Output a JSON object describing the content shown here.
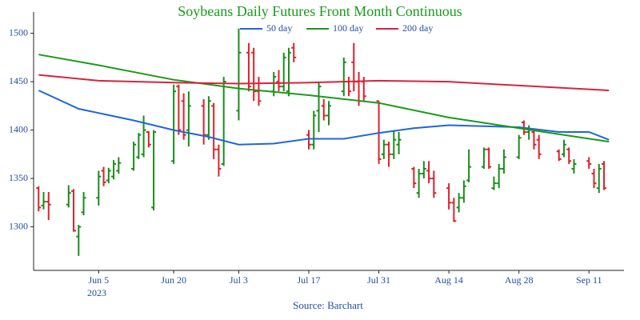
{
  "chart_data": {
    "type": "ohlc",
    "title": "Soybeans Daily Futures Front Month Continuous",
    "source": "Source: Barchart",
    "x_year_label": "2023",
    "up_color": "#1a8c1a",
    "down_color": "#e0202a",
    "xlim": [
      "2023-05-23",
      "2023-09-18"
    ],
    "xticks": [
      {
        "value": "2023-06-05",
        "label": "Jun 5"
      },
      {
        "value": "2023-06-20",
        "label": "Jun 20"
      },
      {
        "value": "2023-07-03",
        "label": "Jul 3"
      },
      {
        "value": "2023-07-17",
        "label": "Jul 17"
      },
      {
        "value": "2023-07-31",
        "label": "Jul 31"
      },
      {
        "value": "2023-08-14",
        "label": "Aug 14"
      },
      {
        "value": "2023-08-28",
        "label": "Aug 28"
      },
      {
        "value": "2023-09-11",
        "label": "Sep 11"
      }
    ],
    "ylim": [
      1255,
      1522
    ],
    "yticks": [
      1300,
      1350,
      1400,
      1450,
      1500
    ],
    "grid": false,
    "ohlc": {
      "x": [
        "2023-05-24",
        "2023-05-25",
        "2023-05-26",
        "2023-05-30",
        "2023-05-31",
        "2023-06-01",
        "2023-06-02",
        "2023-06-05",
        "2023-06-06",
        "2023-06-07",
        "2023-06-08",
        "2023-06-09",
        "2023-06-12",
        "2023-06-13",
        "2023-06-14",
        "2023-06-15",
        "2023-06-16",
        "2023-06-20",
        "2023-06-21",
        "2023-06-22",
        "2023-06-23",
        "2023-06-26",
        "2023-06-27",
        "2023-06-28",
        "2023-06-29",
        "2023-06-30",
        "2023-07-03",
        "2023-07-05",
        "2023-07-06",
        "2023-07-07",
        "2023-07-10",
        "2023-07-11",
        "2023-07-12",
        "2023-07-13",
        "2023-07-14",
        "2023-07-17",
        "2023-07-18",
        "2023-07-19",
        "2023-07-20",
        "2023-07-21",
        "2023-07-24",
        "2023-07-25",
        "2023-07-26",
        "2023-07-27",
        "2023-07-28",
        "2023-07-31",
        "2023-08-01",
        "2023-08-02",
        "2023-08-03",
        "2023-08-04",
        "2023-08-07",
        "2023-08-08",
        "2023-08-09",
        "2023-08-10",
        "2023-08-11",
        "2023-08-14",
        "2023-08-15",
        "2023-08-16",
        "2023-08-17",
        "2023-08-18",
        "2023-08-21",
        "2023-08-22",
        "2023-08-23",
        "2023-08-24",
        "2023-08-25",
        "2023-08-28",
        "2023-08-29",
        "2023-08-30",
        "2023-08-31",
        "2023-09-01",
        "2023-09-05",
        "2023-09-06",
        "2023-09-07",
        "2023-09-08",
        "2023-09-11",
        "2023-09-12",
        "2023-09-13",
        "2023-09-14"
      ],
      "open": [
        1340,
        1322,
        1326,
        1323,
        1337,
        1290,
        1315,
        1330,
        1358,
        1348,
        1352,
        1358,
        1360,
        1372,
        1375,
        1398,
        1320,
        1368,
        1445,
        1430,
        1400,
        1425,
        1395,
        1425,
        1380,
        1365,
        1420,
        1480,
        1480,
        1440,
        1440,
        1450,
        1445,
        1440,
        1485,
        1395,
        1385,
        1420,
        1425,
        1415,
        1440,
        1450,
        1470,
        1450,
        1450,
        1430,
        1375,
        1385,
        1375,
        1385,
        1360,
        1335,
        1355,
        1358,
        1350,
        1340,
        1325,
        1320,
        1330,
        1348,
        1362,
        1380,
        1340,
        1345,
        1360,
        1372,
        1408,
        1398,
        1398,
        1390,
        1378,
        1375,
        1380,
        1360,
        1368,
        1355,
        1340,
        1365
      ],
      "high": [
        1342,
        1336,
        1336,
        1343,
        1339,
        1302,
        1336,
        1358,
        1362,
        1361,
        1369,
        1372,
        1388,
        1397,
        1415,
        1399,
        1400,
        1447,
        1447,
        1438,
        1440,
        1432,
        1435,
        1428,
        1385,
        1455,
        1505,
        1490,
        1485,
        1455,
        1460,
        1462,
        1480,
        1485,
        1490,
        1400,
        1420,
        1450,
        1432,
        1430,
        1475,
        1455,
        1490,
        1460,
        1455,
        1430,
        1390,
        1388,
        1400,
        1398,
        1362,
        1360,
        1368,
        1368,
        1358,
        1345,
        1330,
        1335,
        1348,
        1380,
        1382,
        1382,
        1352,
        1365,
        1380,
        1395,
        1410,
        1405,
        1400,
        1395,
        1380,
        1390,
        1382,
        1370,
        1372,
        1360,
        1365,
        1368
      ],
      "low": [
        1316,
        1318,
        1307,
        1320,
        1295,
        1270,
        1312,
        1322,
        1342,
        1345,
        1349,
        1355,
        1358,
        1370,
        1372,
        1382,
        1317,
        1365,
        1395,
        1390,
        1383,
        1385,
        1390,
        1370,
        1352,
        1363,
        1410,
        1440,
        1430,
        1425,
        1435,
        1440,
        1440,
        1435,
        1470,
        1380,
        1380,
        1398,
        1410,
        1405,
        1435,
        1435,
        1440,
        1425,
        1430,
        1365,
        1370,
        1362,
        1370,
        1375,
        1340,
        1330,
        1350,
        1345,
        1330,
        1318,
        1305,
        1315,
        1325,
        1346,
        1360,
        1360,
        1338,
        1340,
        1355,
        1370,
        1395,
        1390,
        1380,
        1370,
        1368,
        1372,
        1365,
        1355,
        1360,
        1340,
        1335,
        1338
      ],
      "close": [
        1320,
        1326,
        1323,
        1335,
        1296,
        1300,
        1330,
        1352,
        1346,
        1358,
        1365,
        1366,
        1385,
        1395,
        1400,
        1385,
        1398,
        1440,
        1400,
        1395,
        1425,
        1395,
        1430,
        1380,
        1360,
        1450,
        1480,
        1445,
        1440,
        1430,
        1455,
        1445,
        1475,
        1480,
        1475,
        1385,
        1415,
        1445,
        1415,
        1425,
        1470,
        1440,
        1450,
        1430,
        1435,
        1370,
        1385,
        1375,
        1390,
        1390,
        1345,
        1355,
        1360,
        1350,
        1335,
        1325,
        1306,
        1330,
        1342,
        1362,
        1380,
        1362,
        1345,
        1360,
        1372,
        1392,
        1398,
        1400,
        1385,
        1375,
        1370,
        1385,
        1368,
        1365,
        1365,
        1345,
        1360,
        1340
      ]
    },
    "series": [
      {
        "name": "50 day",
        "color": "#1f66d9",
        "x": [
          "2023-05-24",
          "2023-06-01",
          "2023-06-12",
          "2023-06-20",
          "2023-06-27",
          "2023-07-03",
          "2023-07-10",
          "2023-07-17",
          "2023-07-24",
          "2023-07-31",
          "2023-08-07",
          "2023-08-14",
          "2023-08-21",
          "2023-08-28",
          "2023-09-05",
          "2023-09-11",
          "2023-09-15"
        ],
        "values": [
          1441,
          1422,
          1410,
          1400,
          1393,
          1385,
          1386,
          1391,
          1391,
          1397,
          1402,
          1405,
          1404,
          1403,
          1398,
          1398,
          1390
        ]
      },
      {
        "name": "100 day",
        "color": "#1a9a1a",
        "x": [
          "2023-05-24",
          "2023-06-05",
          "2023-06-20",
          "2023-07-03",
          "2023-07-17",
          "2023-07-31",
          "2023-08-14",
          "2023-08-28",
          "2023-09-15"
        ],
        "values": [
          1478,
          1467,
          1452,
          1443,
          1436,
          1428,
          1413,
          1402,
          1388
        ]
      },
      {
        "name": "200 day",
        "color": "#d6243f",
        "x": [
          "2023-05-24",
          "2023-06-05",
          "2023-06-20",
          "2023-07-03",
          "2023-07-17",
          "2023-07-31",
          "2023-08-14",
          "2023-08-28",
          "2023-09-15"
        ],
        "values": [
          1457,
          1451,
          1449,
          1448,
          1449,
          1451,
          1450,
          1446,
          1441
        ]
      }
    ]
  }
}
